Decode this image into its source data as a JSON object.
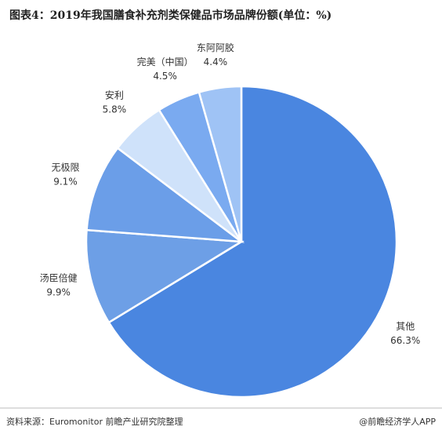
{
  "chart_data": {
    "type": "pie",
    "title": "图表4：2019年我国膳食补充剂类保健品市场品牌份额(单位：%)",
    "categories": [
      "其他",
      "汤臣倍健",
      "无极限",
      "安利",
      "完美（中国）",
      "东阿阿胶"
    ],
    "values": [
      66.3,
      9.9,
      9.1,
      5.8,
      4.5,
      4.4
    ],
    "value_labels": [
      "66.3%",
      "9.9%",
      "9.1%",
      "5.8%",
      "4.5%",
      "4.4%"
    ],
    "colors": [
      "#4a86e0",
      "#6d9fe6",
      "#6b9ee8",
      "#cfe2fa",
      "#7aaaf0",
      "#9fc3f5"
    ],
    "source": "资料来源：Euromonitor 前瞻产业研究院整理",
    "footer_brand": "@前瞻经济学人APP"
  }
}
